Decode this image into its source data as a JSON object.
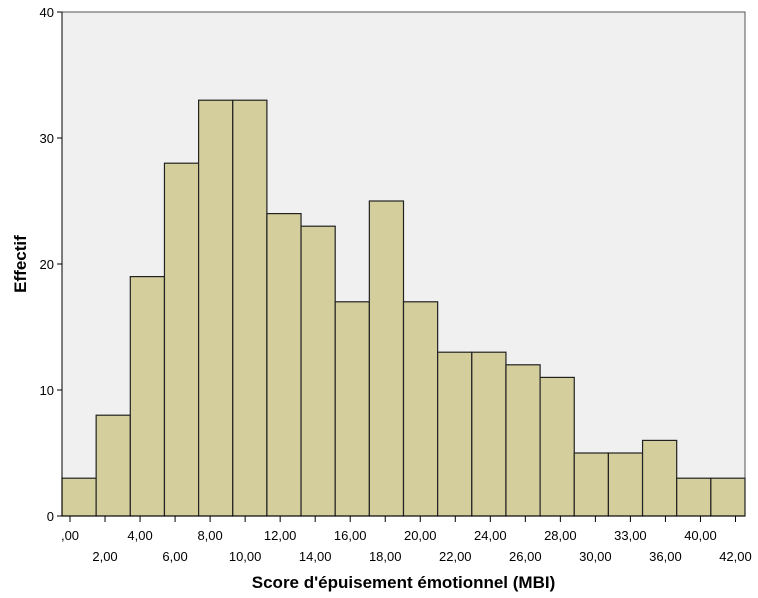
{
  "chart_data": {
    "type": "bar",
    "subtype": "histogram",
    "title": "",
    "xlabel": "Score d'épuisement émotionnel (MBI)",
    "ylabel": "Effectif",
    "ylim": [
      0,
      40
    ],
    "yticks": [
      "0",
      "10",
      "20",
      "30",
      "40"
    ],
    "x_tick_labels_upper": [
      ",00",
      "4,00",
      "8,00",
      "12,00",
      "16,00",
      "20,00",
      "24,00",
      "28,00",
      "33,00",
      "40,00"
    ],
    "x_tick_labels_lower": [
      "2,00",
      "6,00",
      "10,00",
      "14,00",
      "18,00",
      "22,00",
      "26,00",
      "30,00",
      "36,00",
      "42,00"
    ],
    "values": [
      3,
      8,
      19,
      28,
      33,
      33,
      24,
      23,
      17,
      25,
      17,
      13,
      13,
      12,
      11,
      5,
      5,
      6,
      3,
      3
    ],
    "grid": false,
    "colors": {
      "bar_fill": "#d3ce9c",
      "bar_stroke": "#222222",
      "plot_background": "#f0f0f0",
      "axis": "#000000"
    }
  }
}
